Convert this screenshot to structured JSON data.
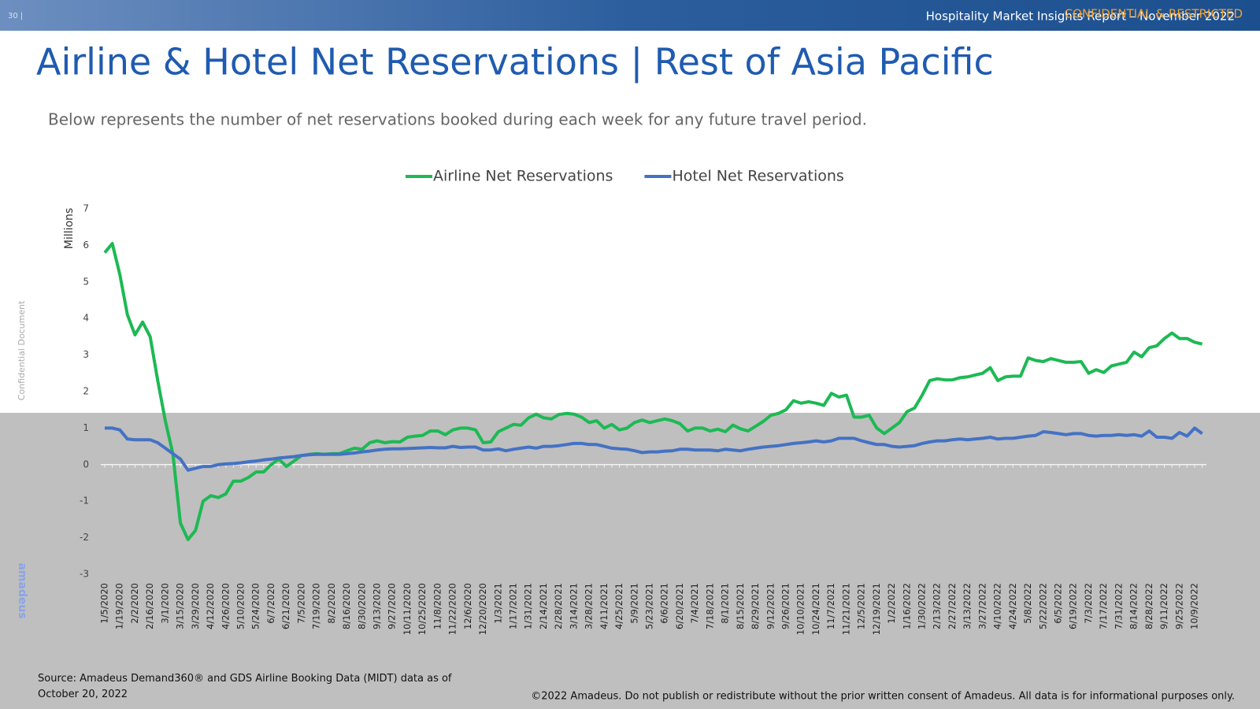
{
  "header": {
    "page": "30 |",
    "report": "Hospitality Market Insights Report – November 2022",
    "label": "CONFIDENTIAL & RESTRICTED"
  },
  "side_note": "Confidential Document",
  "logo": "amadeus",
  "footer": {
    "source": "Source: Amadeus Demand360® and GDS Airline Booking Data (MIDT) data as of October 20, 2022",
    "copyright": "©2022 Amadeus. Do not publish or redistribute without the prior written consent of Amadeus. All data is for informational purposes only."
  },
  "chart_data": {
    "type": "line",
    "title": "Airline & Hotel Net Reservations | Rest of Asia Pacific",
    "subtitle": "Below represents the number of net reservations booked during each week for any future travel period.",
    "y_label": "Millions",
    "ylim": [
      -3,
      7
    ],
    "yticks": [
      -3,
      -2,
      -1,
      0,
      1,
      2,
      3,
      4,
      5,
      6,
      7
    ],
    "legend": "top",
    "categories": [
      "1/5/2020",
      null,
      "1/19/2020",
      null,
      "2/2/2020",
      null,
      "2/16/2020",
      null,
      "3/1/2020",
      null,
      "3/15/2020",
      null,
      "3/29/2020",
      null,
      "4/12/2020",
      null,
      "4/26/2020",
      null,
      "5/10/2020",
      null,
      "5/24/2020",
      null,
      "6/7/2020",
      null,
      "6/21/2020",
      null,
      "7/5/2020",
      null,
      "7/19/2020",
      null,
      "8/2/2020",
      null,
      "8/16/2020",
      null,
      "8/30/2020",
      null,
      "9/13/2020",
      null,
      "9/27/2020",
      null,
      "10/11/2020",
      null,
      "10/25/2020",
      null,
      "11/8/2020",
      null,
      "11/22/2020",
      null,
      "12/6/2020",
      null,
      "12/20/2020",
      null,
      "1/3/2021",
      null,
      "1/17/2021",
      null,
      "1/31/2021",
      null,
      "2/14/2021",
      null,
      "2/28/2021",
      null,
      "3/14/2021",
      null,
      "3/28/2021",
      null,
      "4/11/2021",
      null,
      "4/25/2021",
      null,
      "5/9/2021",
      null,
      "5/23/2021",
      null,
      "6/6/2021",
      null,
      "6/20/2021",
      null,
      "7/4/2021",
      null,
      "7/18/2021",
      null,
      "8/1/2021",
      null,
      "8/15/2021",
      null,
      "8/29/2021",
      null,
      "9/12/2021",
      null,
      "9/26/2021",
      null,
      "10/10/2021",
      null,
      "10/24/2021",
      null,
      "11/7/2021",
      null,
      "11/21/2021",
      null,
      "12/5/2021",
      null,
      "12/19/2021",
      null,
      "1/2/2022",
      null,
      "1/16/2022",
      null,
      "1/30/2022",
      null,
      "2/13/2022",
      null,
      "2/27/2022",
      null,
      "3/13/2022",
      null,
      "3/27/2022",
      null,
      "4/10/2022",
      null,
      "4/24/2022",
      null,
      "5/8/2022",
      null,
      "5/22/2022",
      null,
      "6/5/2022",
      null,
      "6/19/2022",
      null,
      "7/3/2022",
      null,
      "7/17/2022",
      null,
      "7/31/2022",
      null,
      "8/14/2022",
      null,
      "8/28/2022",
      null,
      "9/11/2022",
      null,
      "9/25/2022",
      null,
      "10/9/2022",
      null
    ],
    "series": [
      {
        "name": "Airline Net Reservations",
        "color": "#1db954",
        "values": [
          5.8,
          6.05,
          5.2,
          4.1,
          3.55,
          3.9,
          3.5,
          2.3,
          1.2,
          0.3,
          -1.6,
          -2.05,
          -1.8,
          -1.0,
          -0.85,
          -0.9,
          -0.8,
          -0.45,
          -0.45,
          -0.35,
          -0.2,
          -0.2,
          0.0,
          0.15,
          -0.05,
          0.1,
          0.25,
          0.28,
          0.3,
          0.28,
          0.3,
          0.3,
          0.38,
          0.45,
          0.42,
          0.6,
          0.65,
          0.6,
          0.63,
          0.62,
          0.75,
          0.78,
          0.8,
          0.92,
          0.92,
          0.82,
          0.95,
          1.0,
          1.0,
          0.95,
          0.6,
          0.62,
          0.9,
          1.0,
          1.1,
          1.08,
          1.28,
          1.38,
          1.28,
          1.25,
          1.37,
          1.4,
          1.38,
          1.3,
          1.15,
          1.2,
          1.0,
          1.1,
          0.95,
          1.0,
          1.15,
          1.22,
          1.15,
          1.2,
          1.25,
          1.2,
          1.12,
          0.92,
          1.0,
          1.0,
          0.92,
          0.97,
          0.9,
          1.08,
          0.98,
          0.92,
          1.05,
          1.18,
          1.35,
          1.4,
          1.5,
          1.75,
          1.68,
          1.72,
          1.68,
          1.62,
          1.95,
          1.85,
          1.9,
          1.3,
          1.3,
          1.35,
          1.0,
          0.85,
          1.0,
          1.15,
          1.45,
          1.55,
          1.9,
          2.3,
          2.35,
          2.32,
          2.32,
          2.38,
          2.4,
          2.45,
          2.5,
          2.65,
          2.3,
          2.4,
          2.42,
          2.42,
          2.92,
          2.85,
          2.82,
          2.9,
          2.85,
          2.8,
          2.8,
          2.82,
          2.5,
          2.6,
          2.52,
          2.7,
          2.75,
          2.8,
          3.08,
          2.95,
          3.2,
          3.25,
          3.45,
          3.6,
          3.45,
          3.45,
          3.35,
          3.3
        ]
      },
      {
        "name": "Hotel Net Reservations",
        "color": "#4472c4",
        "values": [
          1.0,
          1.0,
          0.95,
          0.7,
          0.68,
          0.68,
          0.68,
          0.6,
          0.45,
          0.3,
          0.15,
          -0.15,
          -0.1,
          -0.05,
          -0.05,
          0.0,
          0.02,
          0.03,
          0.05,
          0.08,
          0.1,
          0.13,
          0.15,
          0.18,
          0.2,
          0.22,
          0.25,
          0.27,
          0.28,
          0.28,
          0.28,
          0.28,
          0.3,
          0.32,
          0.35,
          0.37,
          0.4,
          0.42,
          0.43,
          0.43,
          0.44,
          0.45,
          0.46,
          0.47,
          0.46,
          0.46,
          0.5,
          0.47,
          0.48,
          0.48,
          0.4,
          0.4,
          0.43,
          0.38,
          0.42,
          0.45,
          0.48,
          0.45,
          0.5,
          0.5,
          0.52,
          0.55,
          0.58,
          0.58,
          0.55,
          0.55,
          0.5,
          0.45,
          0.43,
          0.42,
          0.38,
          0.33,
          0.35,
          0.35,
          0.37,
          0.38,
          0.42,
          0.42,
          0.4,
          0.4,
          0.4,
          0.38,
          0.42,
          0.4,
          0.38,
          0.42,
          0.45,
          0.48,
          0.5,
          0.52,
          0.55,
          0.58,
          0.6,
          0.62,
          0.65,
          0.62,
          0.65,
          0.72,
          0.72,
          0.72,
          0.65,
          0.6,
          0.55,
          0.55,
          0.5,
          0.48,
          0.5,
          0.52,
          0.58,
          0.62,
          0.65,
          0.65,
          0.68,
          0.7,
          0.68,
          0.7,
          0.72,
          0.75,
          0.7,
          0.72,
          0.72,
          0.75,
          0.78,
          0.8,
          0.9,
          0.88,
          0.85,
          0.82,
          0.85,
          0.85,
          0.8,
          0.78,
          0.8,
          0.8,
          0.82,
          0.8,
          0.82,
          0.78,
          0.92,
          0.75,
          0.75,
          0.72,
          0.88,
          0.78,
          1.0,
          0.85
        ]
      }
    ]
  }
}
